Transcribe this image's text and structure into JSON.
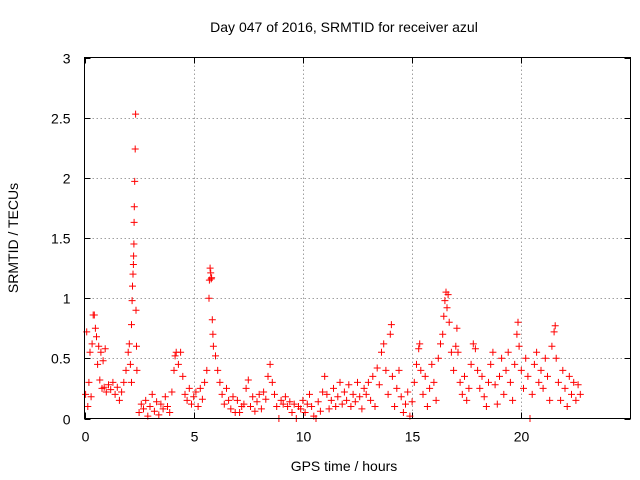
{
  "chart_data": {
    "type": "scatter",
    "title": "Day 047 of 2016, SRMTID for receiver azul",
    "xlabel": "GPS time / hours",
    "ylabel": "SRMTID / TECUs",
    "xlim": [
      0,
      25
    ],
    "ylim": [
      0,
      3
    ],
    "x_ticks": [
      0,
      5,
      10,
      15,
      20
    ],
    "x_tick_labels": [
      "0",
      "5",
      "10",
      "15",
      "20"
    ],
    "y_ticks": [
      0,
      0.5,
      1,
      1.5,
      2,
      2.5,
      3
    ],
    "y_tick_labels": [
      "0",
      "0.5",
      "1",
      "1.5",
      "2",
      "2.5",
      "3"
    ],
    "grid": true,
    "marker": "+",
    "color": "#ff0000",
    "series": [
      {
        "name": "SRMTID",
        "points": [
          [
            0.05,
            0.2
          ],
          [
            0.1,
            0.72
          ],
          [
            0.15,
            0.1
          ],
          [
            0.2,
            0.3
          ],
          [
            0.25,
            0.55
          ],
          [
            0.3,
            0.18
          ],
          [
            0.35,
            0.62
          ],
          [
            0.4,
            0.86
          ],
          [
            0.45,
            0.86
          ],
          [
            0.5,
            0.75
          ],
          [
            0.55,
            0.68
          ],
          [
            0.6,
            0.45
          ],
          [
            0.65,
            0.6
          ],
          [
            0.7,
            0.32
          ],
          [
            0.75,
            0.55
          ],
          [
            0.8,
            0.25
          ],
          [
            0.85,
            0.48
          ],
          [
            0.9,
            0.26
          ],
          [
            0.95,
            0.58
          ],
          [
            1.0,
            0.22
          ],
          [
            1.1,
            0.28
          ],
          [
            1.2,
            0.24
          ],
          [
            1.3,
            0.3
          ],
          [
            1.4,
            0.2
          ],
          [
            1.5,
            0.26
          ],
          [
            1.6,
            0.15
          ],
          [
            1.7,
            0.22
          ],
          [
            1.8,
            0.3
          ],
          [
            1.9,
            0.4
          ],
          [
            2.0,
            0.55
          ],
          [
            2.05,
            0.62
          ],
          [
            2.1,
            0.45
          ],
          [
            2.15,
            0.3
          ],
          [
            2.15,
            0.78
          ],
          [
            2.18,
            0.98
          ],
          [
            2.2,
            1.1
          ],
          [
            2.22,
            1.2
          ],
          [
            2.24,
            1.28
          ],
          [
            2.25,
            1.35
          ],
          [
            2.26,
            1.45
          ],
          [
            2.27,
            1.63
          ],
          [
            2.28,
            1.76
          ],
          [
            2.3,
            1.97
          ],
          [
            2.32,
            2.24
          ],
          [
            2.34,
            2.53
          ],
          [
            2.36,
            0.9
          ],
          [
            2.38,
            0.6
          ],
          [
            2.4,
            0.4
          ],
          [
            2.5,
            0.05
          ],
          [
            2.6,
            0.12
          ],
          [
            2.7,
            0.08
          ],
          [
            2.8,
            0.15
          ],
          [
            2.9,
            0.02
          ],
          [
            3.0,
            0.1
          ],
          [
            3.1,
            0.2
          ],
          [
            3.2,
            0.06
          ],
          [
            3.3,
            0.14
          ],
          [
            3.4,
            0.03
          ],
          [
            3.5,
            0.12
          ],
          [
            3.6,
            0.08
          ],
          [
            3.7,
            0.18
          ],
          [
            3.8,
            0.1
          ],
          [
            3.9,
            0.05
          ],
          [
            4.0,
            0.22
          ],
          [
            4.1,
            0.4
          ],
          [
            4.15,
            0.52
          ],
          [
            4.2,
            0.55
          ],
          [
            4.3,
            0.45
          ],
          [
            4.4,
            0.55
          ],
          [
            4.5,
            0.35
          ],
          [
            4.6,
            0.2
          ],
          [
            4.7,
            0.15
          ],
          [
            4.8,
            0.25
          ],
          [
            4.9,
            0.12
          ],
          [
            5.0,
            0.18
          ],
          [
            5.1,
            0.22
          ],
          [
            5.2,
            0.1
          ],
          [
            5.3,
            0.25
          ],
          [
            5.4,
            0.16
          ],
          [
            5.5,
            0.3
          ],
          [
            5.6,
            0.4
          ],
          [
            5.7,
            1.0
          ],
          [
            5.72,
            1.15
          ],
          [
            5.75,
            1.25
          ],
          [
            5.78,
            1.21
          ],
          [
            5.8,
            1.16
          ],
          [
            5.82,
            1.17
          ],
          [
            5.85,
            0.82
          ],
          [
            5.88,
            0.7
          ],
          [
            5.9,
            0.6
          ],
          [
            6.0,
            0.52
          ],
          [
            6.1,
            0.4
          ],
          [
            6.2,
            0.3
          ],
          [
            6.3,
            0.2
          ],
          [
            6.4,
            0.12
          ],
          [
            6.5,
            0.25
          ],
          [
            6.6,
            0.15
          ],
          [
            6.7,
            0.08
          ],
          [
            6.8,
            0.18
          ],
          [
            6.9,
            0.05
          ],
          [
            7.0,
            0.15
          ],
          [
            7.1,
            0.05
          ],
          [
            7.2,
            0.1
          ],
          [
            7.3,
            0.12
          ],
          [
            7.4,
            0.25
          ],
          [
            7.5,
            0.32
          ],
          [
            7.6,
            0.1
          ],
          [
            7.7,
            0.18
          ],
          [
            7.8,
            0.06
          ],
          [
            7.9,
            0.14
          ],
          [
            8.0,
            0.2
          ],
          [
            8.1,
            0.08
          ],
          [
            8.2,
            0.22
          ],
          [
            8.3,
            0.16
          ],
          [
            8.4,
            0.35
          ],
          [
            8.5,
            0.45
          ],
          [
            8.6,
            0.3
          ],
          [
            8.7,
            0.2
          ],
          [
            8.8,
            0.1
          ],
          [
            8.9,
            0.0
          ],
          [
            9.0,
            0.15
          ],
          [
            9.1,
            0.12
          ],
          [
            9.2,
            0.18
          ],
          [
            9.3,
            0.1
          ],
          [
            9.4,
            0.14
          ],
          [
            9.5,
            0.05
          ],
          [
            9.6,
            0.12
          ],
          [
            9.7,
            0.0
          ],
          [
            9.8,
            0.1
          ],
          [
            9.9,
            0.08
          ],
          [
            10.0,
            0.15
          ],
          [
            10.1,
            0.05
          ],
          [
            10.2,
            0.12
          ],
          [
            10.3,
            0.2
          ],
          [
            10.4,
            0.1
          ],
          [
            10.5,
            0.02
          ],
          [
            10.6,
            0.0
          ],
          [
            10.7,
            0.14
          ],
          [
            10.8,
            0.06
          ],
          [
            10.9,
            0.22
          ],
          [
            11.0,
            0.35
          ],
          [
            11.1,
            0.2
          ],
          [
            11.2,
            0.08
          ],
          [
            11.3,
            0.15
          ],
          [
            11.4,
            0.25
          ],
          [
            11.5,
            0.1
          ],
          [
            11.6,
            0.18
          ],
          [
            11.7,
            0.3
          ],
          [
            11.8,
            0.12
          ],
          [
            11.9,
            0.22
          ],
          [
            12.0,
            0.15
          ],
          [
            12.1,
            0.28
          ],
          [
            12.2,
            0.1
          ],
          [
            12.3,
            0.2
          ],
          [
            12.4,
            0.14
          ],
          [
            12.5,
            0.3
          ],
          [
            12.6,
            0.18
          ],
          [
            12.7,
            0.08
          ],
          [
            12.8,
            0.25
          ],
          [
            12.9,
            0.2
          ],
          [
            13.0,
            0.3
          ],
          [
            13.1,
            0.15
          ],
          [
            13.2,
            0.35
          ],
          [
            13.3,
            0.1
          ],
          [
            13.4,
            0.42
          ],
          [
            13.5,
            0.28
          ],
          [
            13.6,
            0.55
          ],
          [
            13.7,
            0.62
          ],
          [
            13.8,
            0.4
          ],
          [
            13.9,
            0.2
          ],
          [
            14.0,
            0.7
          ],
          [
            14.05,
            0.78
          ],
          [
            14.1,
            0.35
          ],
          [
            14.2,
            0.1
          ],
          [
            14.3,
            0.25
          ],
          [
            14.4,
            0.4
          ],
          [
            14.5,
            0.18
          ],
          [
            14.6,
            0.05
          ],
          [
            14.7,
            0.12
          ],
          [
            14.8,
            0.22
          ],
          [
            14.9,
            0.02
          ],
          [
            15.0,
            0.14
          ],
          [
            15.1,
            0.3
          ],
          [
            15.2,
            0.45
          ],
          [
            15.3,
            0.58
          ],
          [
            15.35,
            0.62
          ],
          [
            15.4,
            0.4
          ],
          [
            15.5,
            0.2
          ],
          [
            15.6,
            0.35
          ],
          [
            15.7,
            0.1
          ],
          [
            15.8,
            0.25
          ],
          [
            15.9,
            0.45
          ],
          [
            16.0,
            0.3
          ],
          [
            16.1,
            0.15
          ],
          [
            16.2,
            0.5
          ],
          [
            16.3,
            0.62
          ],
          [
            16.4,
            0.7
          ],
          [
            16.45,
            0.85
          ],
          [
            16.5,
            0.98
          ],
          [
            16.55,
            1.05
          ],
          [
            16.6,
            0.92
          ],
          [
            16.65,
            1.03
          ],
          [
            16.7,
            0.8
          ],
          [
            16.8,
            0.55
          ],
          [
            16.9,
            0.4
          ],
          [
            17.0,
            0.6
          ],
          [
            17.05,
            0.75
          ],
          [
            17.1,
            0.55
          ],
          [
            17.2,
            0.3
          ],
          [
            17.3,
            0.2
          ],
          [
            17.4,
            0.35
          ],
          [
            17.5,
            0.15
          ],
          [
            17.6,
            0.25
          ],
          [
            17.7,
            0.45
          ],
          [
            17.8,
            0.62
          ],
          [
            17.9,
            0.58
          ],
          [
            18.0,
            0.4
          ],
          [
            18.1,
            0.25
          ],
          [
            18.2,
            0.35
          ],
          [
            18.3,
            0.18
          ],
          [
            18.4,
            0.1
          ],
          [
            18.5,
            0.3
          ],
          [
            18.6,
            0.45
          ],
          [
            18.7,
            0.55
          ],
          [
            18.8,
            0.28
          ],
          [
            18.9,
            0.12
          ],
          [
            19.0,
            0.35
          ],
          [
            19.1,
            0.5
          ],
          [
            19.2,
            0.2
          ],
          [
            19.3,
            0.4
          ],
          [
            19.4,
            0.55
          ],
          [
            19.5,
            0.3
          ],
          [
            19.6,
            0.15
          ],
          [
            19.7,
            0.45
          ],
          [
            19.8,
            0.7
          ],
          [
            19.85,
            0.8
          ],
          [
            19.9,
            0.6
          ],
          [
            20.0,
            0.4
          ],
          [
            20.1,
            0.25
          ],
          [
            20.2,
            0.5
          ],
          [
            20.3,
            0.35
          ],
          [
            20.4,
            0.0
          ],
          [
            20.5,
            0.2
          ],
          [
            20.6,
            0.45
          ],
          [
            20.7,
            0.55
          ],
          [
            20.8,
            0.3
          ],
          [
            20.9,
            0.4
          ],
          [
            21.0,
            0.25
          ],
          [
            21.1,
            0.5
          ],
          [
            21.2,
            0.35
          ],
          [
            21.3,
            0.15
          ],
          [
            21.4,
            0.6
          ],
          [
            21.5,
            0.72
          ],
          [
            21.55,
            0.77
          ],
          [
            21.6,
            0.5
          ],
          [
            21.7,
            0.3
          ],
          [
            21.8,
            0.15
          ],
          [
            21.9,
            0.4
          ],
          [
            22.0,
            0.25
          ],
          [
            22.1,
            0.1
          ],
          [
            22.2,
            0.35
          ],
          [
            22.3,
            0.2
          ],
          [
            22.4,
            0.3
          ],
          [
            22.5,
            0.15
          ],
          [
            22.6,
            0.28
          ],
          [
            22.7,
            0.2
          ]
        ]
      }
    ]
  }
}
